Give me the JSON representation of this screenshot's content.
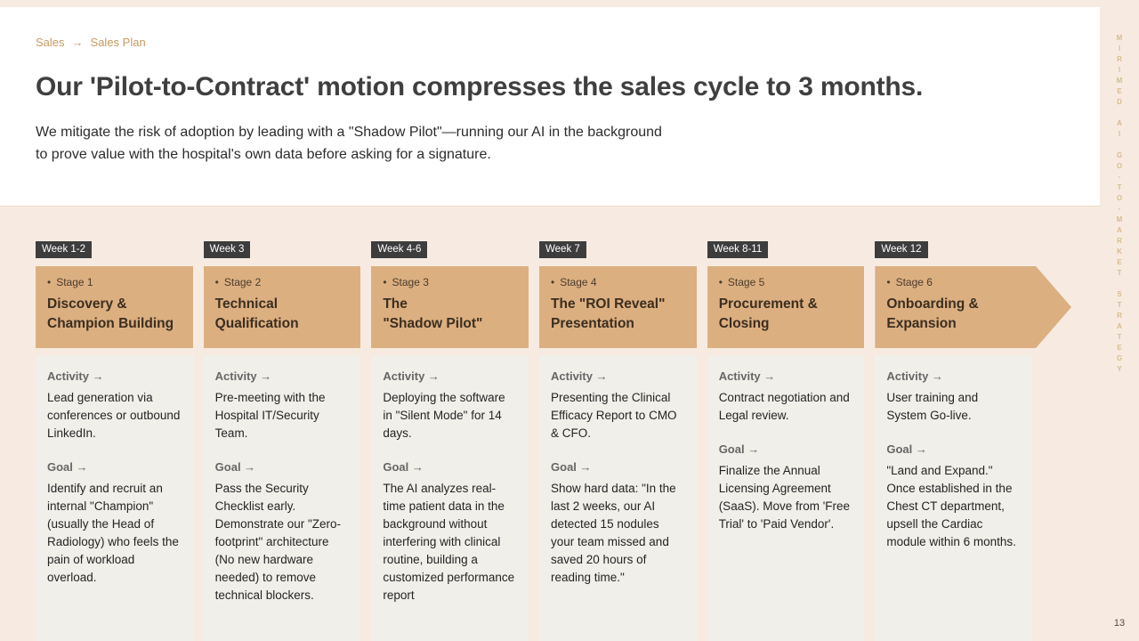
{
  "breadcrumb": {
    "section": "Sales",
    "separator": "→",
    "page": "Sales Plan"
  },
  "header": {
    "title": "Our 'Pilot-to-Contract' motion compresses the sales cycle to 3 months.",
    "subtitle": "We mitigate the risk of adoption by leading with a \"Shadow Pilot\"—running our AI in the background\nto prove value with the hospital's own data before asking for a signature."
  },
  "rail": {
    "vertical_text": "MIRIMED AI GO-TO-MARKET STRATEGY",
    "page_number": "13"
  },
  "timeline": {
    "bullet": "•",
    "activity_label": "Activity →",
    "goal_label": "Goal →",
    "stages": [
      {
        "week": "Week 1-2",
        "label": "Stage 1",
        "title": "Discovery &\nChampion Building",
        "activity": "Lead generation via conferences or outbound LinkedIn.",
        "goal": "Identify and recruit an internal \"Champion\" (usually the Head of Radiology) who feels the pain of workload overload."
      },
      {
        "week": "Week 3",
        "label": "Stage 2",
        "title": "Technical\nQualification",
        "activity": "Pre-meeting with the Hospital IT/Security Team.",
        "goal": "Pass the Security Checklist early. Demonstrate our \"Zero-footprint\" architecture (No new hardware needed) to remove technical blockers."
      },
      {
        "week": "Week 4-6",
        "label": "Stage 3",
        "title": "The\n\"Shadow Pilot\"",
        "activity": "Deploying the software in \"Silent Mode\" for 14 days.",
        "goal": "The AI analyzes real-time patient data in the background without interfering with clinical routine, building a customized performance report"
      },
      {
        "week": "Week 7",
        "label": "Stage 4",
        "title": "The \"ROI Reveal\"\nPresentation",
        "activity": "Presenting the Clinical Efficacy Report to CMO & CFO.",
        "goal": "Show hard data: \"In the last 2 weeks, our AI detected 15 nodules your team missed and saved 20 hours of reading time.\""
      },
      {
        "week": "Week 8-11",
        "label": "Stage 5",
        "title": "Procurement &\nClosing",
        "activity": "Contract negotiation and Legal review.",
        "goal": "Finalize the Annual Licensing Agreement (SaaS). Move from 'Free Trial' to 'Paid Vendor'."
      },
      {
        "week": "Week 12",
        "label": "Stage 6",
        "title": "Onboarding &\nExpansion",
        "activity": "User training and System Go-live.",
        "goal": "\"Land and Expand.\" Once established in the Chest CT department, upsell the Cardiac module within 6 months."
      }
    ]
  }
}
